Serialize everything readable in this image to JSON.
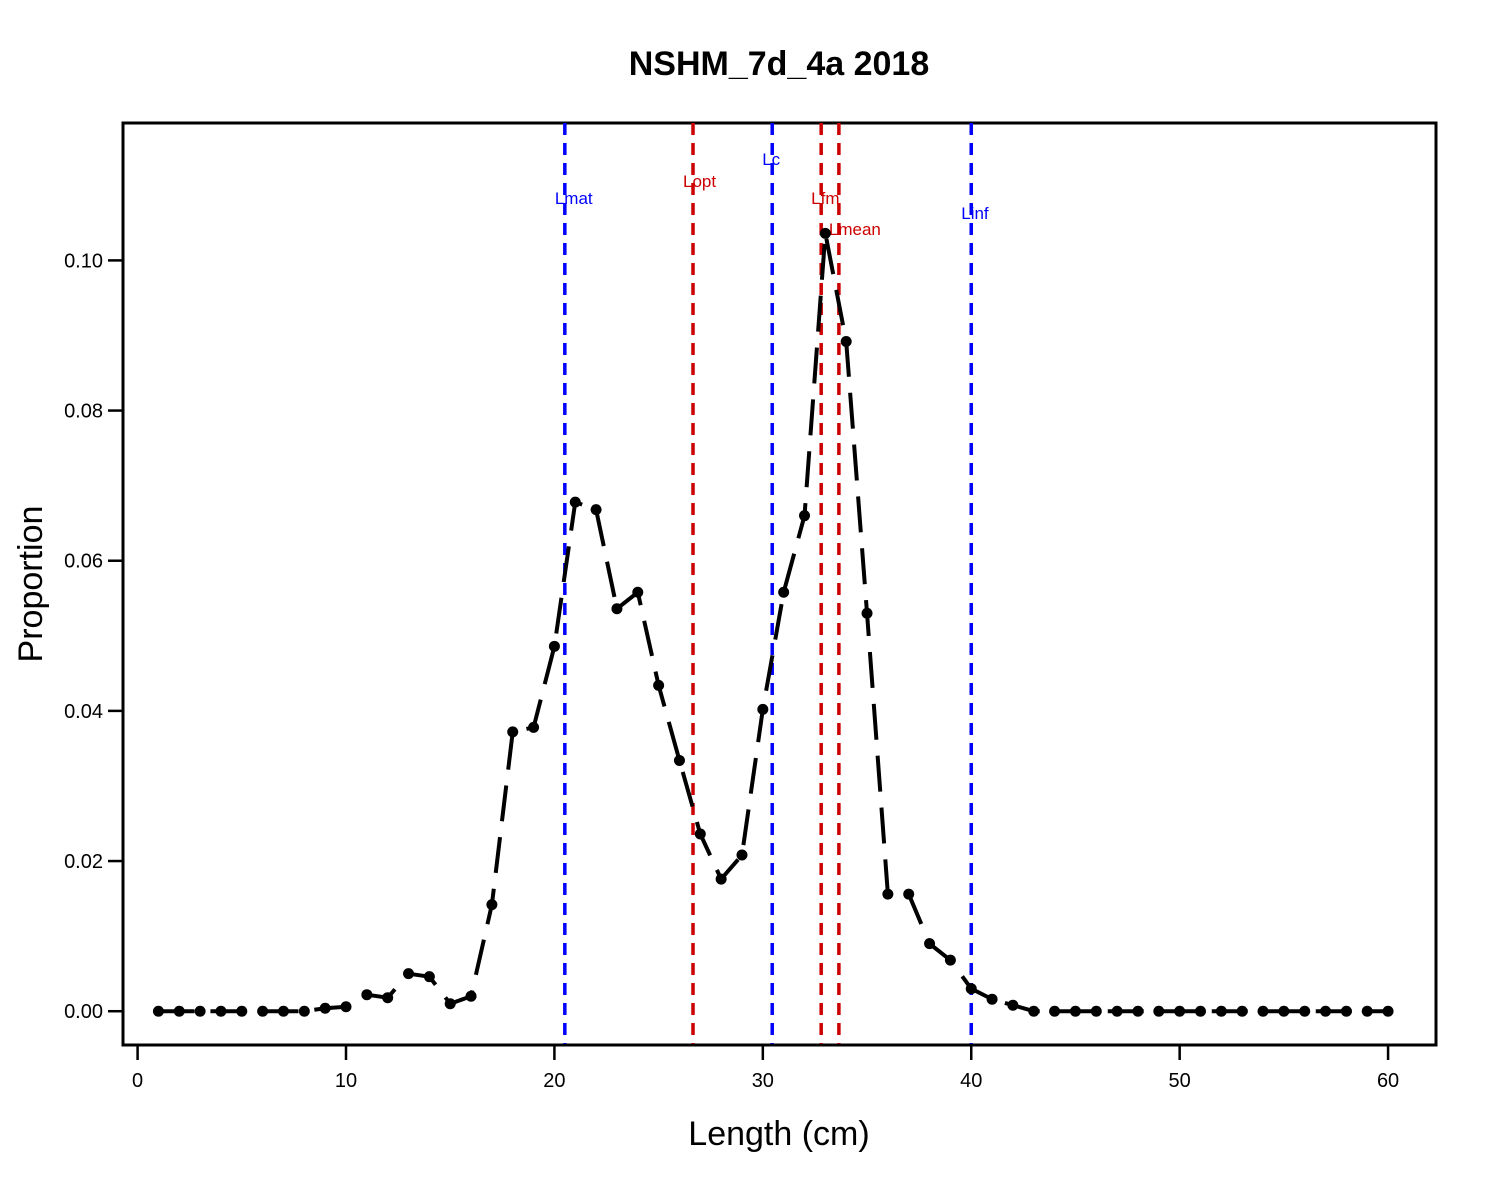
{
  "chart_data": {
    "type": "line",
    "title": "NSHM_7d_4a 2018",
    "xlabel": "Length (cm)",
    "ylabel": "Proportion",
    "xlim": [
      -0.7,
      62.3
    ],
    "ylim": [
      -0.0045,
      0.1183
    ],
    "xticks": [
      0,
      10,
      20,
      30,
      40,
      50,
      60
    ],
    "xtick_labels": [
      "0",
      "10",
      "20",
      "30",
      "40",
      "50",
      "60"
    ],
    "yticks": [
      0.0,
      0.02,
      0.04,
      0.06,
      0.08,
      0.1
    ],
    "ytick_labels": [
      "0.00",
      "0.02",
      "0.04",
      "0.06",
      "0.08",
      "0.10"
    ],
    "grid": false,
    "series": [
      {
        "color": "#000000",
        "line_style": "long-dash",
        "x": [
          1,
          2,
          3,
          4,
          5,
          6,
          7,
          8,
          9,
          10,
          11,
          12,
          13,
          14,
          15,
          16,
          17,
          18,
          19,
          20,
          21,
          22,
          23,
          24,
          25,
          26,
          27,
          28,
          29,
          30,
          31,
          32,
          33,
          34,
          35,
          36,
          37,
          38,
          39,
          40,
          41,
          42,
          43,
          44,
          45,
          46,
          47,
          48,
          49,
          50,
          51,
          52,
          53,
          54,
          55,
          56,
          57,
          58,
          59,
          60
        ],
        "y": [
          0,
          0,
          0,
          0,
          0,
          0,
          0,
          0,
          0.0004,
          0.0006,
          0.0022,
          0.0018,
          0.005,
          0.0046,
          0.001,
          0.002,
          0.0142,
          0.0372,
          0.0378,
          0.0486,
          0.0678,
          0.0668,
          0.0536,
          0.0558,
          0.0434,
          0.0334,
          0.0236,
          0.0176,
          0.0208,
          0.0402,
          0.0558,
          0.066,
          0.1036,
          0.0892,
          0.053,
          0.0156,
          0.0156,
          0.009,
          0.0068,
          0.003,
          0.0016,
          0.0008,
          0,
          0,
          0,
          0,
          0,
          0,
          0,
          0,
          0,
          0,
          0,
          0,
          0,
          0,
          0,
          0,
          0,
          0
        ]
      }
    ],
    "reference_lines": [
      {
        "label": "Lmat",
        "x": 20.5,
        "color": "#0000ff",
        "label_y": 0.1083
      },
      {
        "label": "Lopt",
        "x": 26.65,
        "color": "#cc0000",
        "label_y": 0.1106
      },
      {
        "label": "Lc",
        "x": 30.45,
        "color": "#0000ff",
        "label_y": 0.1135
      },
      {
        "label": "Lfm",
        "x": 32.8,
        "color": "#cc0000",
        "label_y": 0.1083
      },
      {
        "label": "Lmean",
        "x": 33.65,
        "color": "#cc0000",
        "label_y": 0.1042
      },
      {
        "label": "Linf",
        "x": 40.0,
        "color": "#0000ff",
        "label_y": 0.1063
      }
    ]
  }
}
